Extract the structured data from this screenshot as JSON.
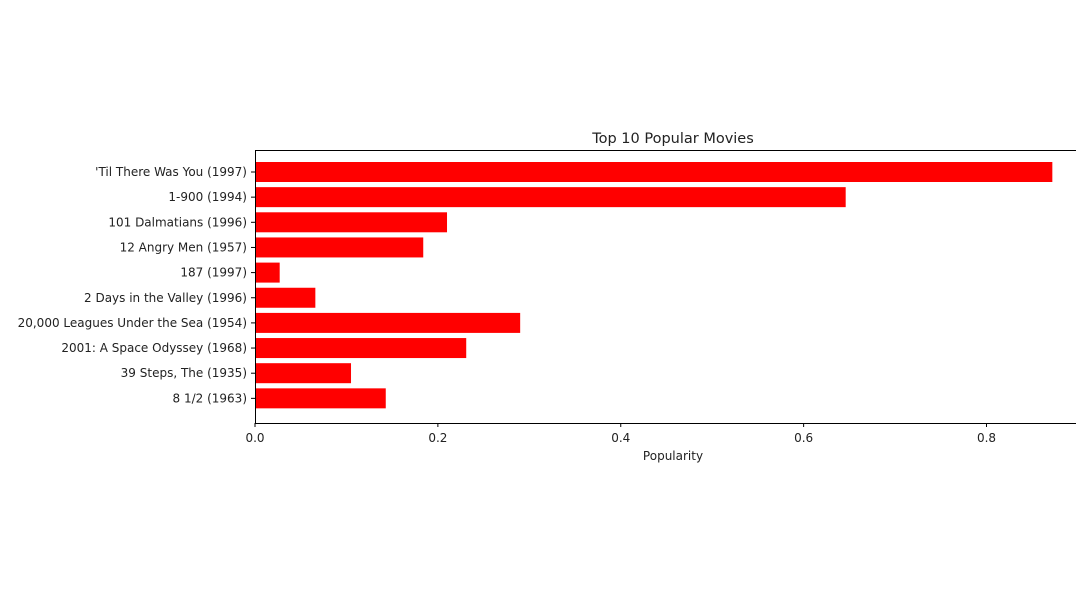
{
  "chart_data": {
    "type": "bar",
    "orientation": "horizontal",
    "title": "Top 10 Popular Movies",
    "xlabel": "Popularity",
    "ylabel": "",
    "categories": [
      "'Til There Was You (1997)",
      "1-900 (1994)",
      "101 Dalmatians (1996)",
      "12 Angry Men (1957)",
      "187 (1997)",
      "2 Days in the Valley (1996)",
      "20,000 Leagues Under the Sea (1954)",
      "2001: A Space Odyssey (1968)",
      "39 Steps, The (1935)",
      "8 1/2 (1963)"
    ],
    "values": [
      0.872,
      0.646,
      0.21,
      0.184,
      0.027,
      0.066,
      0.29,
      0.231,
      0.105,
      0.143
    ],
    "xlim": [
      0,
      0.9
    ],
    "xticks": [
      0.0,
      0.2,
      0.4,
      0.6,
      0.8
    ],
    "xtick_labels": [
      "0.0",
      "0.2",
      "0.4",
      "0.6",
      "0.8"
    ],
    "bar_color": "#ff0000",
    "grid": false
  }
}
